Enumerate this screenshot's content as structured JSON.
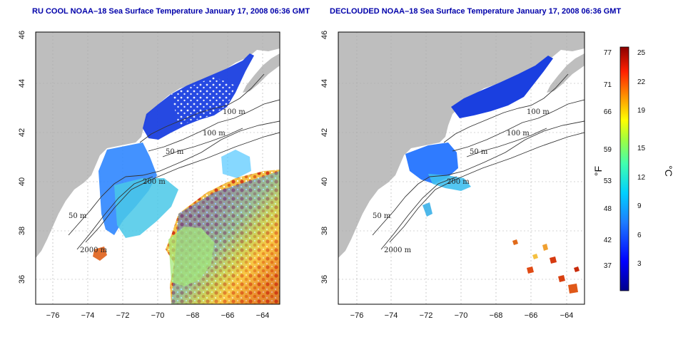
{
  "left_panel": {
    "title": "RU COOL NOAA–18 Sea Surface Temperature January 17, 2008 06:36 GMT",
    "contour_labels": [
      "100 m",
      "100 m",
      "50 m",
      "200 m",
      "50 m",
      "2000 m"
    ]
  },
  "right_panel": {
    "title": "DECLOUDED NOAA–18 Sea Surface Temperature January 17, 2008 06:36 GMT",
    "contour_labels": [
      "100 m",
      "100 m",
      "50 m",
      "200 m",
      "50 m",
      "2000 m"
    ]
  },
  "axes": {
    "lat_ticks": [
      "46",
      "44",
      "42",
      "40",
      "38",
      "36"
    ],
    "lon_ticks": [
      "−76",
      "−74",
      "−72",
      "−70",
      "−68",
      "−66",
      "−64"
    ]
  },
  "colorbar": {
    "fahrenheit_ticks": [
      "77",
      "71",
      "66",
      "59",
      "53",
      "48",
      "42",
      "37"
    ],
    "celsius_ticks": [
      "25",
      "22",
      "19",
      "15",
      "12",
      "9",
      "6",
      "3"
    ],
    "fahrenheit_unit": "°F",
    "celsius_unit": "°C"
  },
  "colors": {
    "land": "#bebebe",
    "ocean": "#ffffff",
    "title": "#0000aa",
    "cold": "#1a3fe0",
    "warm": "#c83010"
  }
}
